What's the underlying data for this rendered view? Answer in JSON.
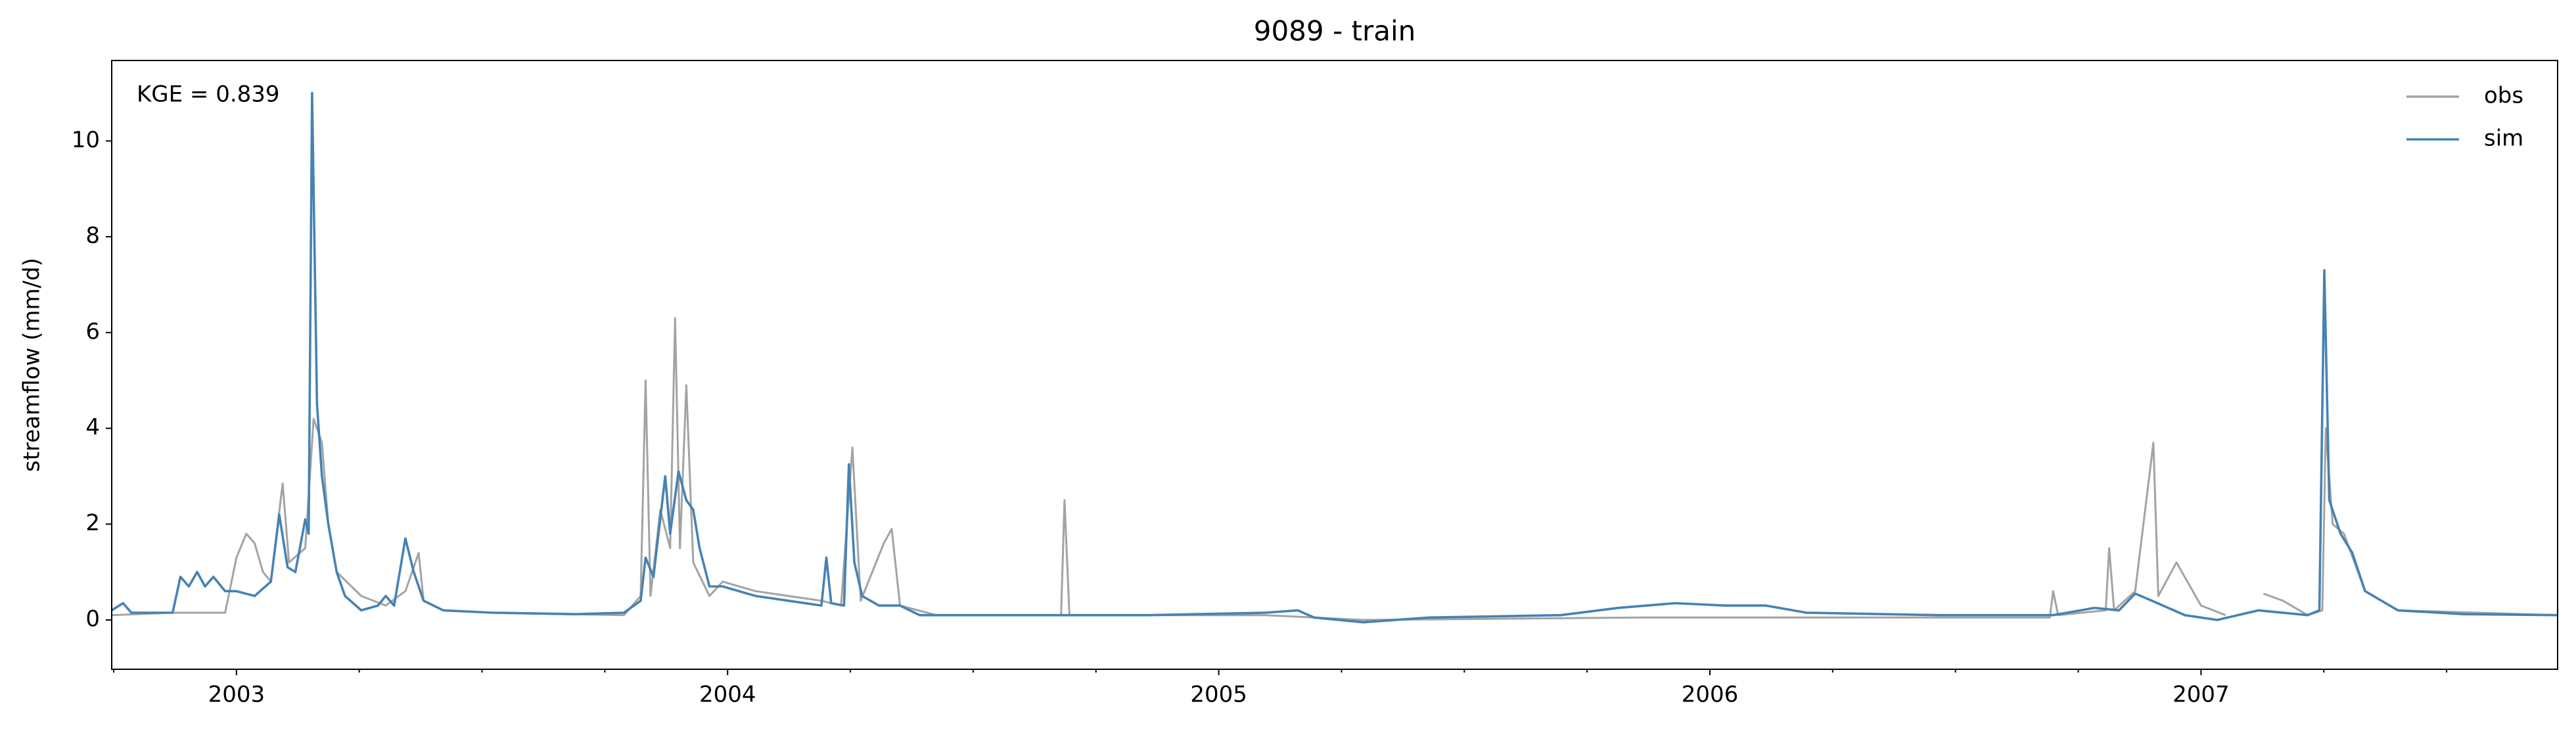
{
  "chart_data": {
    "type": "line",
    "title": "9089 - train",
    "ylabel": "streamflow (mm/d)",
    "annotation": "KGE = 0.839",
    "legend": "upper right",
    "xlim": [
      2002.746,
      2007.726
    ],
    "xticks": [
      {
        "value": 2003,
        "label": "2003"
      },
      {
        "value": 2004,
        "label": "2004"
      },
      {
        "value": 2005,
        "label": "2005"
      },
      {
        "value": 2006,
        "label": "2006"
      },
      {
        "value": 2007,
        "label": "2007"
      }
    ],
    "xminorticks": [
      2002.75,
      2003.25,
      2003.5,
      2003.75,
      2004.25,
      2004.5,
      2004.75,
      2005.25,
      2005.5,
      2005.75,
      2006.25,
      2006.5,
      2006.75,
      2007.25,
      2007.5
    ],
    "ylim": [
      -1.03,
      11.68
    ],
    "yticks": [
      0,
      2,
      4,
      6,
      8,
      10
    ],
    "series": [
      {
        "name": "obs",
        "color": "#a3a3a3",
        "x": [
          2002.746,
          2002.87,
          2002.977,
          2003.0,
          2003.02,
          2003.037,
          2003.054,
          2003.07,
          2003.094,
          2003.107,
          2003.14,
          2003.157,
          2003.174,
          2003.187,
          2003.204,
          2003.254,
          2003.304,
          2003.344,
          2003.371,
          2003.381,
          2003.421,
          2003.522,
          2003.789,
          2003.823,
          2003.833,
          2003.843,
          2003.863,
          2003.883,
          2003.893,
          2003.903,
          2003.916,
          2003.93,
          2003.963,
          2003.99,
          2004.057,
          2004.124,
          2004.191,
          2004.231,
          2004.254,
          2004.271,
          2004.318,
          2004.334,
          2004.351,
          2004.425,
          2004.679,
          2004.686,
          2004.696,
          2005.094,
          2005.194,
          2005.294,
          2005.863,
          2006.197,
          2006.692,
          2006.699,
          2006.709,
          2006.806,
          2006.813,
          2006.823,
          2006.866,
          2006.903,
          2006.913,
          2006.95,
          2007.0,
          2007.05,
          2007.084,
          2007.127,
          2007.167,
          2007.217,
          2007.247,
          2007.254,
          2007.268,
          2007.291,
          2007.334,
          2007.401,
          2007.726
        ],
        "values": [
          0.1,
          0.15,
          0.15,
          1.3,
          1.8,
          1.6,
          1.0,
          0.8,
          2.85,
          1.2,
          1.5,
          4.2,
          3.7,
          2.0,
          1.0,
          0.5,
          0.3,
          0.6,
          1.4,
          0.4,
          0.2,
          0.15,
          0.1,
          0.5,
          5.0,
          0.5,
          2.3,
          1.5,
          6.3,
          1.5,
          4.9,
          1.2,
          0.5,
          0.8,
          0.6,
          0.5,
          0.4,
          0.3,
          3.6,
          0.4,
          1.6,
          1.9,
          0.3,
          0.1,
          0.1,
          2.5,
          0.1,
          0.1,
          0.05,
          0.0,
          0.05,
          0.05,
          0.05,
          0.6,
          0.1,
          0.2,
          1.5,
          0.2,
          0.6,
          3.7,
          0.5,
          1.2,
          0.3,
          0.1,
          null,
          0.55,
          0.4,
          0.1,
          0.2,
          4.0,
          2.0,
          1.8,
          0.6,
          0.2,
          0.1
        ]
      },
      {
        "name": "sim",
        "color": "#4682b4",
        "x": [
          2002.746,
          2002.769,
          2002.786,
          2002.87,
          2002.886,
          2002.903,
          2002.92,
          2002.936,
          2002.953,
          2002.977,
          2003.0,
          2003.037,
          2003.07,
          2003.087,
          2003.104,
          2003.12,
          2003.14,
          2003.147,
          2003.154,
          2003.164,
          2003.174,
          2003.187,
          2003.204,
          2003.221,
          2003.254,
          2003.288,
          2003.304,
          2003.321,
          2003.344,
          2003.361,
          2003.381,
          2003.421,
          2003.522,
          2003.689,
          2003.789,
          2003.823,
          2003.833,
          2003.849,
          2003.873,
          2003.883,
          2003.9,
          2003.916,
          2003.93,
          2003.943,
          2003.963,
          2003.99,
          2004.057,
          2004.124,
          2004.191,
          2004.201,
          2004.211,
          2004.237,
          2004.247,
          2004.258,
          2004.274,
          2004.308,
          2004.351,
          2004.391,
          2004.692,
          2004.86,
          2005.094,
          2005.161,
          2005.194,
          2005.294,
          2005.428,
          2005.696,
          2005.813,
          2005.93,
          2006.03,
          2006.114,
          2006.197,
          2006.465,
          2006.699,
          2006.783,
          2006.833,
          2006.866,
          2006.9,
          2006.967,
          2007.033,
          2007.117,
          2007.217,
          2007.241,
          2007.251,
          2007.261,
          2007.284,
          2007.308,
          2007.334,
          2007.401,
          2007.535,
          2007.726
        ],
        "values": [
          0.2,
          0.35,
          0.15,
          0.15,
          0.9,
          0.7,
          1.0,
          0.7,
          0.9,
          0.6,
          0.6,
          0.5,
          0.8,
          2.2,
          1.1,
          1.0,
          2.1,
          1.8,
          11.0,
          4.5,
          3.0,
          2.0,
          1.0,
          0.5,
          0.2,
          0.3,
          0.5,
          0.3,
          1.7,
          1.0,
          0.4,
          0.2,
          0.15,
          0.12,
          0.15,
          0.4,
          1.3,
          0.9,
          3.0,
          1.8,
          3.1,
          2.5,
          2.3,
          1.5,
          0.7,
          0.7,
          0.5,
          0.4,
          0.3,
          1.3,
          0.35,
          0.3,
          3.25,
          1.2,
          0.5,
          0.3,
          0.3,
          0.1,
          0.1,
          0.1,
          0.15,
          0.2,
          0.05,
          -0.05,
          0.05,
          0.1,
          0.25,
          0.35,
          0.3,
          0.3,
          0.15,
          0.1,
          0.1,
          0.25,
          0.2,
          0.55,
          0.4,
          0.1,
          0.0,
          0.2,
          0.1,
          0.2,
          7.3,
          2.5,
          1.8,
          1.4,
          0.6,
          0.2,
          0.12,
          0.1
        ]
      }
    ]
  }
}
